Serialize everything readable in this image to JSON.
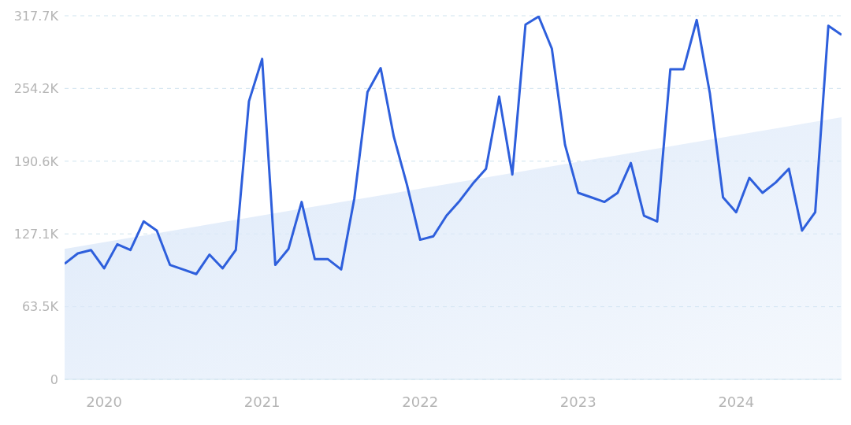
{
  "chart_data": {
    "type": "line",
    "x": [
      "2019-10",
      "2019-11",
      "2019-12",
      "2020-01",
      "2020-02",
      "2020-03",
      "2020-04",
      "2020-05",
      "2020-06",
      "2020-07",
      "2020-08",
      "2020-09",
      "2020-10",
      "2020-11",
      "2020-12",
      "2021-01",
      "2021-02",
      "2021-03",
      "2021-04",
      "2021-05",
      "2021-06",
      "2021-07",
      "2021-08",
      "2021-09",
      "2021-10",
      "2021-11",
      "2021-12",
      "2022-01",
      "2022-02",
      "2022-03",
      "2022-04",
      "2022-05",
      "2022-06",
      "2022-07",
      "2022-08",
      "2022-09",
      "2022-10",
      "2022-11",
      "2022-12",
      "2023-01",
      "2023-02",
      "2023-03",
      "2023-04",
      "2023-05",
      "2023-06",
      "2023-07",
      "2023-08",
      "2023-09",
      "2023-10",
      "2023-11",
      "2023-12",
      "2024-01",
      "2024-02",
      "2024-03",
      "2024-04",
      "2024-05",
      "2024-06",
      "2024-07",
      "2024-08",
      "2024-09"
    ],
    "series": [
      {
        "type": "area",
        "color": "#dde9f9",
        "x": [
          "2019-10",
          "2024-09"
        ],
        "values": [
          114000,
          229000
        ]
      },
      {
        "color": "#2e5fdc",
        "values": [
          101000,
          110000,
          113000,
          97000,
          118000,
          113000,
          138000,
          130000,
          100000,
          96000,
          92000,
          109000,
          97000,
          113000,
          243000,
          280000,
          100000,
          114000,
          155000,
          105000,
          105000,
          96000,
          158000,
          251000,
          272000,
          212000,
          170000,
          122000,
          125000,
          143000,
          156000,
          171000,
          184000,
          247000,
          179000,
          310000,
          317000,
          289000,
          205000,
          163000,
          159000,
          155000,
          163000,
          189000,
          143000,
          138000,
          271000,
          271000,
          314000,
          250000,
          159000,
          146000,
          176000,
          163000,
          172000,
          184000,
          130000,
          146000,
          309000,
          301000
        ]
      }
    ],
    "xlim": [
      "2019-10",
      "2024-09"
    ],
    "xticks": [
      {
        "value": "2020-01",
        "label": "2020"
      },
      {
        "value": "2021-01",
        "label": "2021"
      },
      {
        "value": "2022-01",
        "label": "2022"
      },
      {
        "value": "2023-01",
        "label": "2023"
      },
      {
        "value": "2024-01",
        "label": "2024"
      }
    ],
    "ylim": [
      0,
      317700
    ],
    "yticks": [
      0,
      {
        "value": 63500,
        "label": "63.5K"
      },
      {
        "value": 127100,
        "label": "127.1K"
      },
      {
        "value": 190600,
        "label": "190.6K"
      },
      {
        "value": 254200,
        "label": "254.2K"
      },
      {
        "value": 317700,
        "label": "317.7K"
      }
    ],
    "grid": "y"
  }
}
